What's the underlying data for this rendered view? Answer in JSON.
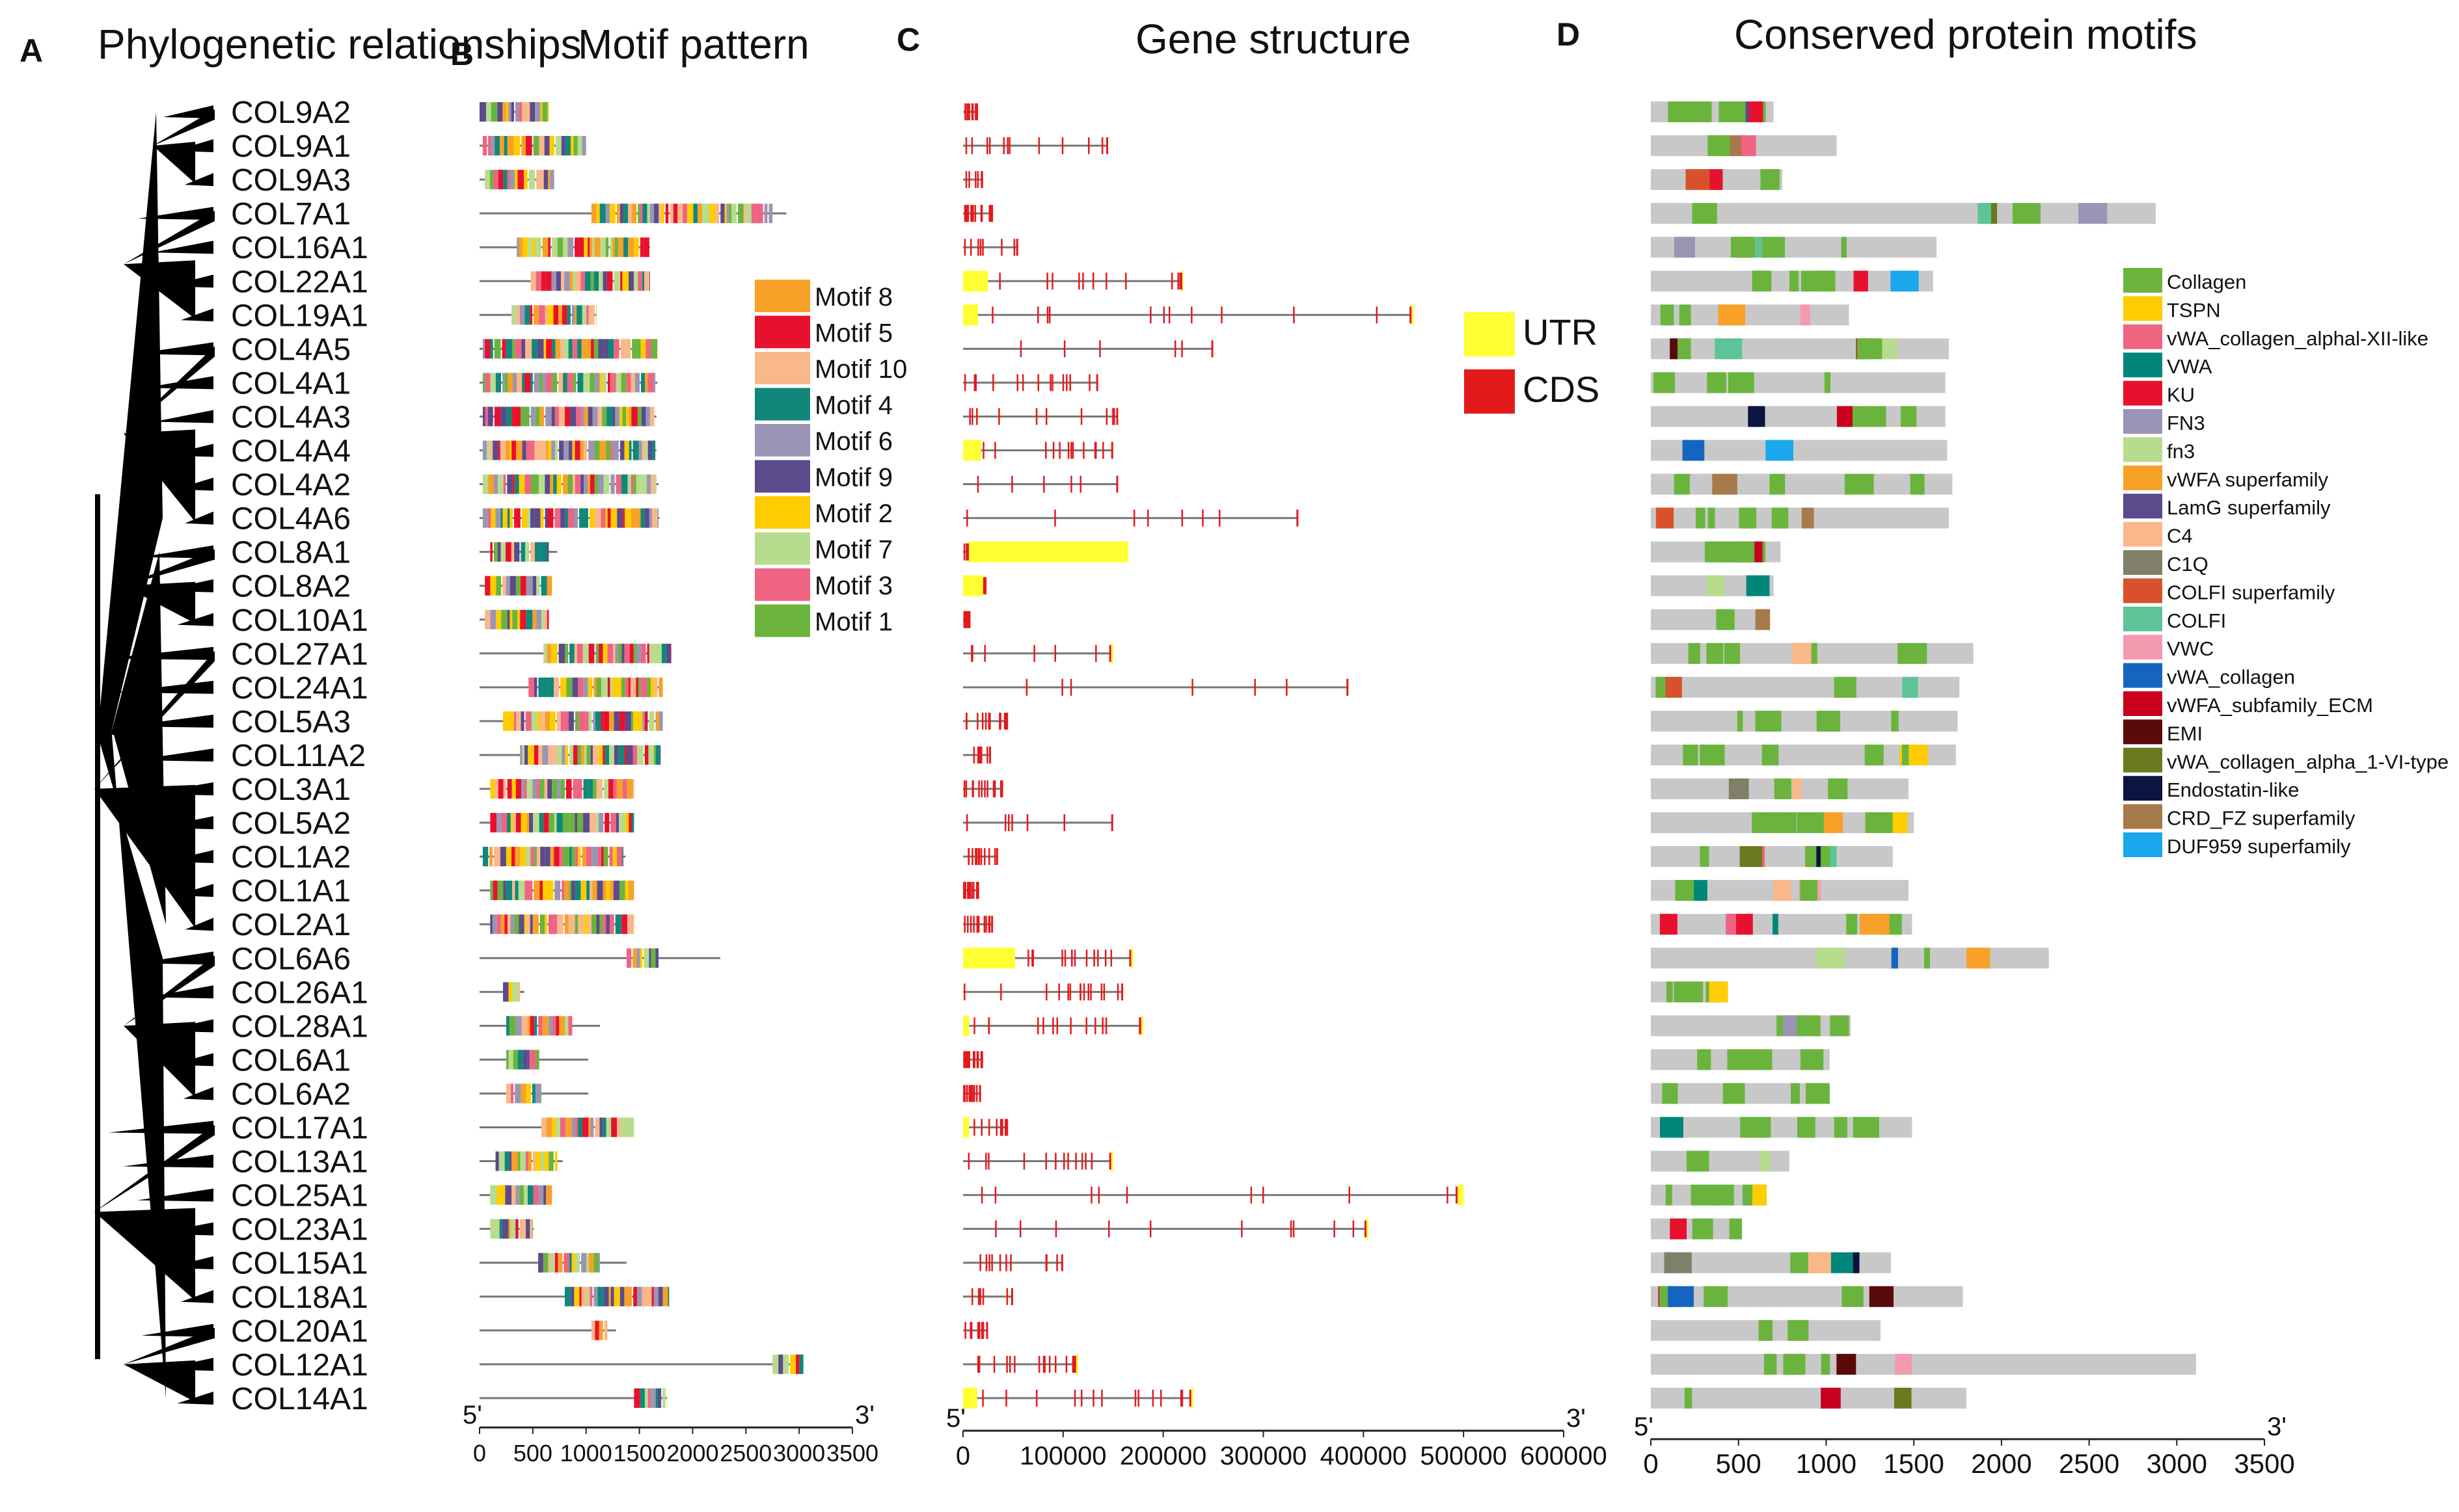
{
  "panels": [
    {
      "letter": "A",
      "title": "Phylogenetic relationships"
    },
    {
      "letter": "B",
      "title": "Motif pattern"
    },
    {
      "letter": "C",
      "title": "Gene structure"
    },
    {
      "letter": "D",
      "title": "Conserved protein motifs"
    }
  ],
  "genes": [
    "COL9A2",
    "COL9A1",
    "COL9A3",
    "COL7A1",
    "COL16A1",
    "COL22A1",
    "COL19A1",
    "COL4A5",
    "COL4A1",
    "COL4A3",
    "COL4A4",
    "COL4A2",
    "COL4A6",
    "COL8A1",
    "COL8A2",
    "COL10A1",
    "COL27A1",
    "COL24A1",
    "COL5A3",
    "COL11A2",
    "COL3A1",
    "COL5A2",
    "COL1A2",
    "COL1A1",
    "COL2A1",
    "COL6A6",
    "COL26A1",
    "COL28A1",
    "COL6A1",
    "COL6A2",
    "COL17A1",
    "COL13A1",
    "COL25A1",
    "COL23A1",
    "COL15A1",
    "COL18A1",
    "COL20A1",
    "COL12A1",
    "COL14A1"
  ],
  "tree_clades": [
    {
      "from": 0,
      "to": 2,
      "depth": 1
    },
    {
      "from": 3,
      "to": 6,
      "depth": 2
    },
    {
      "from": 7,
      "to": 12,
      "depth": 2
    },
    {
      "from": 13,
      "to": 15,
      "depth": 2
    },
    {
      "from": 16,
      "to": 24,
      "depth": 3
    },
    {
      "from": 25,
      "to": 29,
      "depth": 2
    },
    {
      "from": 30,
      "to": 35,
      "depth": 3
    },
    {
      "from": 36,
      "to": 38,
      "depth": 2
    }
  ],
  "motif_legend": [
    {
      "label": "Motif 8",
      "color": "#f7a128"
    },
    {
      "label": "Motif 5",
      "color": "#e8112d"
    },
    {
      "label": "Motif 10",
      "color": "#f9b88a"
    },
    {
      "label": "Motif 4",
      "color": "#10877a"
    },
    {
      "label": "Motif 6",
      "color": "#9b95b5"
    },
    {
      "label": "Motif 9",
      "color": "#5b4a8c"
    },
    {
      "label": "Motif 2",
      "color": "#ffcc00"
    },
    {
      "label": "Motif 7",
      "color": "#b8dc8e"
    },
    {
      "label": "Motif 3",
      "color": "#ef6482"
    },
    {
      "label": "Motif 1",
      "color": "#6ab43e"
    }
  ],
  "structure_legend": [
    {
      "label": "UTR",
      "color": "#ffff33"
    },
    {
      "label": "CDS",
      "color": "#e31a1c"
    }
  ],
  "domain_legend": [
    {
      "label": "Collagen",
      "color": "#6ab43e"
    },
    {
      "label": "TSPN",
      "color": "#ffcc00"
    },
    {
      "label": "vWA_collagen_alphal-XII-like",
      "color": "#ef6482"
    },
    {
      "label": "VWA",
      "color": "#00877a"
    },
    {
      "label": "KU",
      "color": "#e8112d"
    },
    {
      "label": "FN3",
      "color": "#9b95b5"
    },
    {
      "label": "fn3",
      "color": "#b8dc8e"
    },
    {
      "label": "vWFA superfamily",
      "color": "#f7a128"
    },
    {
      "label": "LamG superfamily",
      "color": "#5b4a8c"
    },
    {
      "label": "C4",
      "color": "#f9b88a"
    },
    {
      "label": "C1Q",
      "color": "#808069"
    },
    {
      "label": "COLFI superfamily",
      "color": "#d9512c"
    },
    {
      "label": "COLFI",
      "color": "#5cc497"
    },
    {
      "label": "VWC",
      "color": "#f49ab0"
    },
    {
      "label": "vWA_collagen",
      "color": "#1565c0"
    },
    {
      "label": "vWFA_subfamily_ECM",
      "color": "#c8001e"
    },
    {
      "label": "EMI",
      "color": "#5a0a0a"
    },
    {
      "label": "vWA_collagen_alpha_1-VI-type",
      "color": "#6b7a1e"
    },
    {
      "label": "Endostatin-like",
      "color": "#0b1540"
    },
    {
      "label": "CRD_FZ superfamily",
      "color": "#a8794a"
    },
    {
      "label": "DUF959 superfamily",
      "color": "#1aa7ec"
    }
  ],
  "chart_data": [
    {
      "type": "motif-map",
      "title": "Motif pattern",
      "x_ticks": [
        "0",
        "500",
        "1000",
        "1500",
        "2000",
        "2500",
        "3000",
        "3500"
      ],
      "xlim": [
        0,
        3500
      ],
      "end_labels": [
        "5'",
        "3'"
      ],
      "lengths": [
        650,
        1000,
        700,
        2880,
        1600,
        1600,
        1100,
        1670,
        1670,
        1660,
        1660,
        1680,
        1690,
        730,
        680,
        650,
        1800,
        1720,
        1720,
        1700,
        1450,
        1450,
        1370,
        1450,
        1450,
        2260,
        420,
        1130,
        1020,
        1020,
        1450,
        780,
        680,
        510,
        1380,
        1780,
        1280,
        3040,
        1760
      ],
      "motif_spans": [
        [
          0,
          650
        ],
        [
          30,
          1000
        ],
        [
          50,
          700
        ],
        [
          1050,
          2750
        ],
        [
          350,
          1600
        ],
        [
          480,
          1600
        ],
        [
          300,
          1100
        ],
        [
          30,
          1670
        ],
        [
          30,
          1650
        ],
        [
          30,
          1640
        ],
        [
          30,
          1650
        ],
        [
          30,
          1660
        ],
        [
          30,
          1680
        ],
        [
          100,
          650
        ],
        [
          50,
          680
        ],
        [
          50,
          650
        ],
        [
          600,
          1800
        ],
        [
          460,
          1720
        ],
        [
          220,
          1720
        ],
        [
          380,
          1700
        ],
        [
          100,
          1450
        ],
        [
          100,
          1450
        ],
        [
          30,
          1350
        ],
        [
          100,
          1450
        ],
        [
          100,
          1450
        ],
        [
          1380,
          1680
        ],
        [
          220,
          380
        ],
        [
          250,
          870
        ],
        [
          250,
          560
        ],
        [
          250,
          580
        ],
        [
          580,
          1450
        ],
        [
          150,
          730
        ],
        [
          100,
          680
        ],
        [
          100,
          500
        ],
        [
          550,
          1130
        ],
        [
          800,
          1780
        ],
        [
          1050,
          1200
        ],
        [
          2750,
          3040
        ],
        [
          1450,
          1760
        ]
      ]
    },
    {
      "type": "gene-structure",
      "title": "Gene structure",
      "x_ticks": [
        "0",
        "100000",
        "200000",
        "300000",
        "400000",
        "500000",
        "600000"
      ],
      "xlim": [
        0,
        600000
      ],
      "end_labels": [
        "5'",
        "3'"
      ],
      "lengths": [
        15000,
        145000,
        20000,
        30000,
        55000,
        220000,
        450000,
        250000,
        135000,
        155000,
        150000,
        155000,
        335000,
        165000,
        22000,
        6000,
        150000,
        385000,
        45000,
        28000,
        40000,
        150000,
        35000,
        15000,
        30000,
        170000,
        160000,
        180000,
        20000,
        18000,
        45000,
        150000,
        500000,
        405000,
        100000,
        50000,
        25000,
        115000,
        230000
      ],
      "utr_5": [
        0,
        0,
        0,
        0,
        0,
        25000,
        15000,
        0,
        0,
        0,
        18000,
        0,
        0,
        0,
        20000,
        0,
        0,
        0,
        0,
        0,
        0,
        0,
        0,
        0,
        0,
        52000,
        0,
        6000,
        0,
        0,
        6000,
        0,
        0,
        0,
        0,
        0,
        0,
        0,
        14000
      ],
      "utr_3": [
        0,
        0,
        0,
        0,
        0,
        2000,
        2000,
        0,
        0,
        0,
        0,
        0,
        0,
        160000,
        0,
        0,
        2000,
        0,
        0,
        0,
        0,
        0,
        0,
        0,
        0,
        2000,
        0,
        2000,
        0,
        0,
        0,
        2000,
        6000,
        2000,
        0,
        0,
        0,
        2000,
        2000
      ]
    },
    {
      "type": "domain-map",
      "title": "Conserved protein motifs",
      "x_ticks": [
        "0",
        "500",
        "1000",
        "1500",
        "2000",
        "2500",
        "3000",
        "3500"
      ],
      "xlim": [
        0,
        3500
      ],
      "end_labels": [
        "5'",
        "3'"
      ],
      "lengths": [
        700,
        1060,
        750,
        2880,
        1630,
        1610,
        1130,
        1700,
        1680,
        1680,
        1690,
        1720,
        1700,
        740,
        700,
        680,
        1840,
        1760,
        1750,
        1740,
        1470,
        1500,
        1380,
        1470,
        1490,
        2270,
        440,
        1140,
        1020,
        1020,
        1490,
        790,
        660,
        520,
        1370,
        1780,
        1310,
        3110,
        1800
      ]
    }
  ]
}
